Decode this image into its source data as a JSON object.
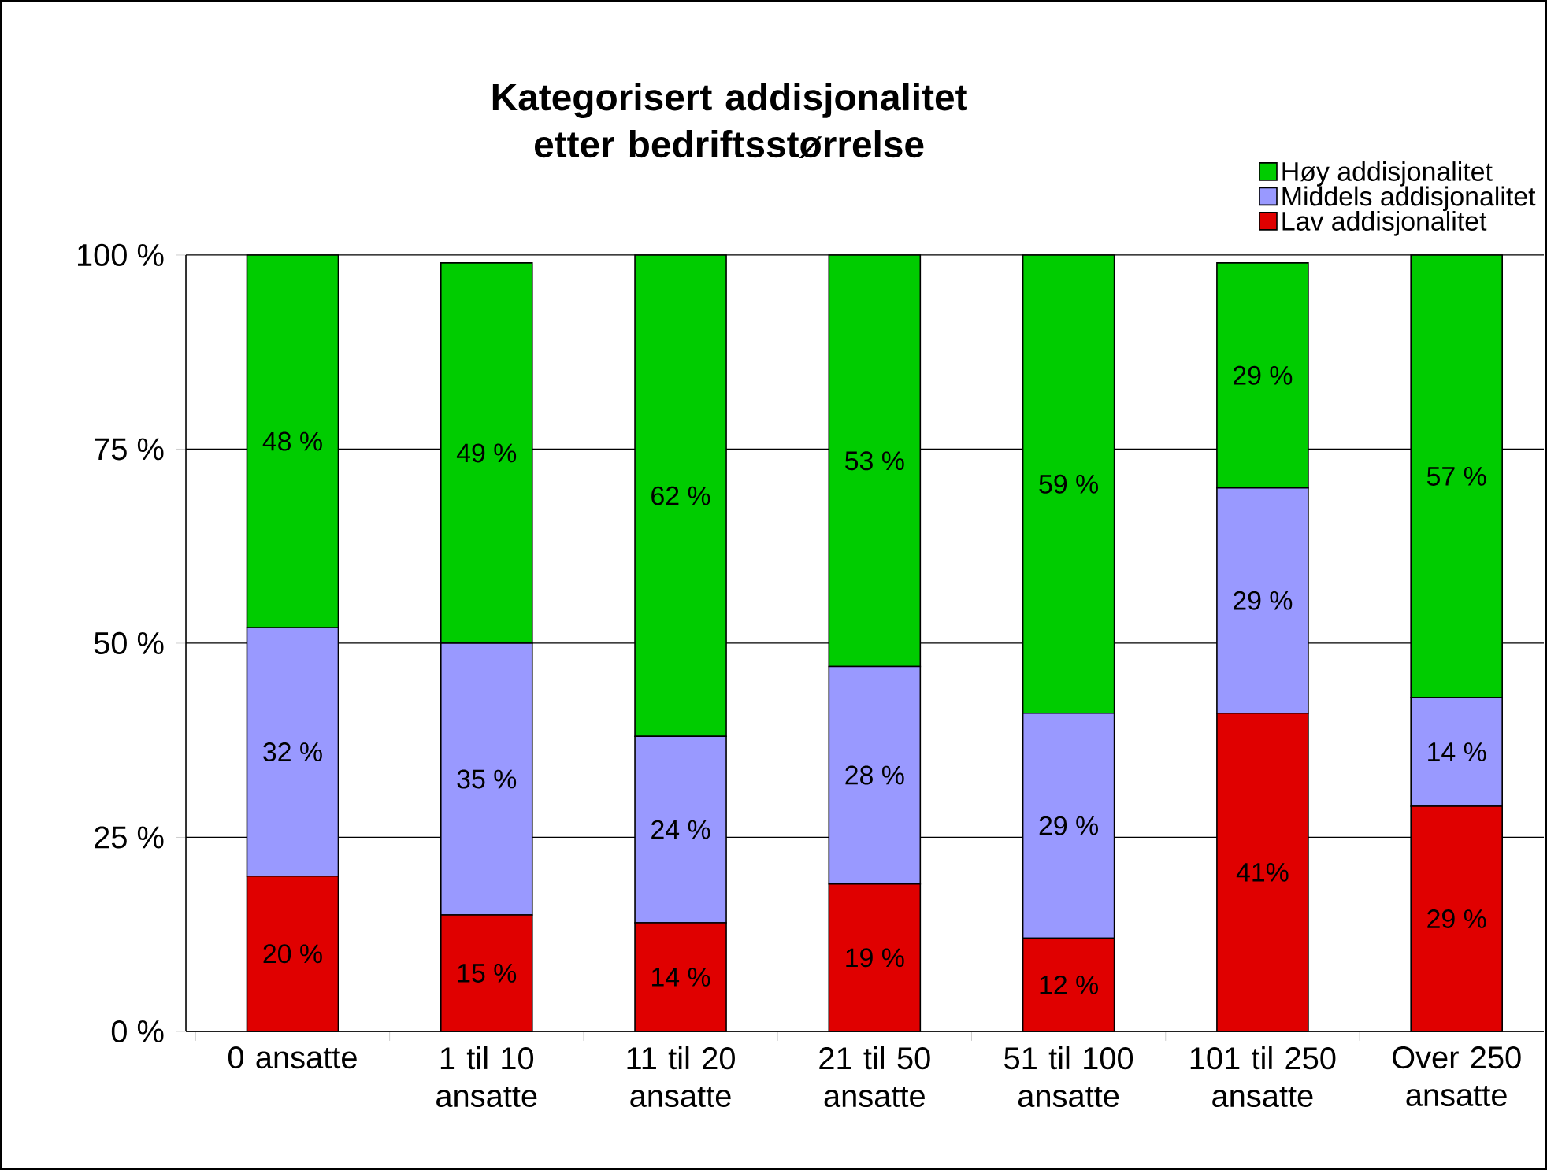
{
  "chart_data": {
    "type": "bar",
    "title": "Kategorisert addisjonalitet etter bedriftsstørrelse",
    "categories": [
      "0 ansatte",
      "1 til 10 ansatte",
      "11 til 20 ansatte",
      "21 til 50 ansatte",
      "51 til 100 ansatte",
      "101 til 250 ansatte",
      "Over 250 ansatte"
    ],
    "stacked": true,
    "series": [
      {
        "name": "Lav addisjonalitet",
        "color": "#e00000",
        "values": [
          20,
          15,
          14,
          19,
          12,
          41,
          29
        ],
        "value_labels": [
          "20 %",
          "15 %",
          "14 %",
          "19 %",
          "12 %",
          "41%",
          "29 %"
        ]
      },
      {
        "name": "Middels addisjonalitet",
        "color": "#9999ff",
        "values": [
          32,
          35,
          24,
          28,
          29,
          29,
          14
        ],
        "value_labels": [
          "32 %",
          "35 %",
          "24 %",
          "28 %",
          "29 %",
          "29 %",
          "14 %"
        ]
      },
      {
        "name": "Høy addisjonalitet",
        "color": "#00cc00",
        "values": [
          48,
          49,
          62,
          53,
          59,
          29,
          57
        ],
        "value_labels": [
          "48 %",
          "49 %",
          "62 %",
          "53 %",
          "59 %",
          "29 %",
          "57 %"
        ]
      }
    ],
    "ylim": [
      0,
      100
    ],
    "yticks": [
      {
        "value": 0,
        "label": "0 %"
      },
      {
        "value": 25,
        "label": "25 %"
      },
      {
        "value": 50,
        "label": "50 %"
      },
      {
        "value": 75,
        "label": "75 %"
      },
      {
        "value": 100,
        "label": "100 %"
      }
    ],
    "grid": "y",
    "legend": "top right"
  }
}
